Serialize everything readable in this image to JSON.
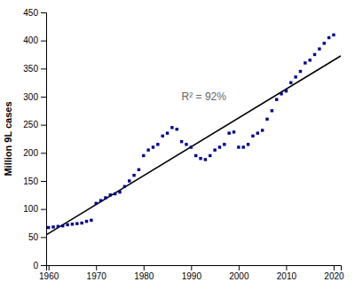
{
  "chart_data": {
    "type": "scatter",
    "ylabel": "Million 9L cases",
    "xlim": [
      1959.5,
      2021.5
    ],
    "ylim": [
      0,
      450
    ],
    "xticks": [
      1960,
      1970,
      1980,
      1990,
      2000,
      2010,
      2020
    ],
    "yticks": [
      0,
      50,
      100,
      150,
      200,
      250,
      300,
      350,
      400,
      450
    ],
    "grid": false,
    "annotations": [
      {
        "text": "R² = 92%",
        "x": 1988,
        "y": 293
      }
    ],
    "series": [
      {
        "type": "scatter",
        "marker": "square",
        "color": "#00008B",
        "x": [
          1960,
          1961,
          1962,
          1963,
          1964,
          1965,
          1966,
          1967,
          1968,
          1969,
          1970,
          1971,
          1972,
          1973,
          1974,
          1975,
          1976,
          1977,
          1978,
          1979,
          1980,
          1981,
          1982,
          1983,
          1984,
          1985,
          1986,
          1987,
          1988,
          1989,
          1990,
          1991,
          1992,
          1993,
          1994,
          1995,
          1996,
          1997,
          1998,
          1999,
          2000,
          2001,
          2002,
          2003,
          2004,
          2005,
          2006,
          2007,
          2008,
          2009,
          2010,
          2011,
          2012,
          2013,
          2014,
          2015,
          2016,
          2017,
          2018,
          2019,
          2020
        ],
        "values": [
          67,
          68,
          69,
          70,
          72,
          73,
          74,
          75,
          78,
          80,
          110,
          115,
          120,
          125,
          127,
          130,
          140,
          150,
          160,
          170,
          195,
          205,
          210,
          215,
          230,
          235,
          245,
          242,
          220,
          215,
          210,
          195,
          190,
          188,
          195,
          205,
          210,
          215,
          235,
          237,
          210,
          210,
          215,
          230,
          235,
          240,
          260,
          275,
          295,
          305,
          310,
          325,
          335,
          345,
          360,
          365,
          375,
          385,
          395,
          405,
          410
        ]
      },
      {
        "type": "line",
        "line_style": "solid",
        "color": "#000000",
        "x": [
          1959.5,
          2021.5
        ],
        "values": [
          53.83,
          372.62
        ]
      }
    ]
  }
}
